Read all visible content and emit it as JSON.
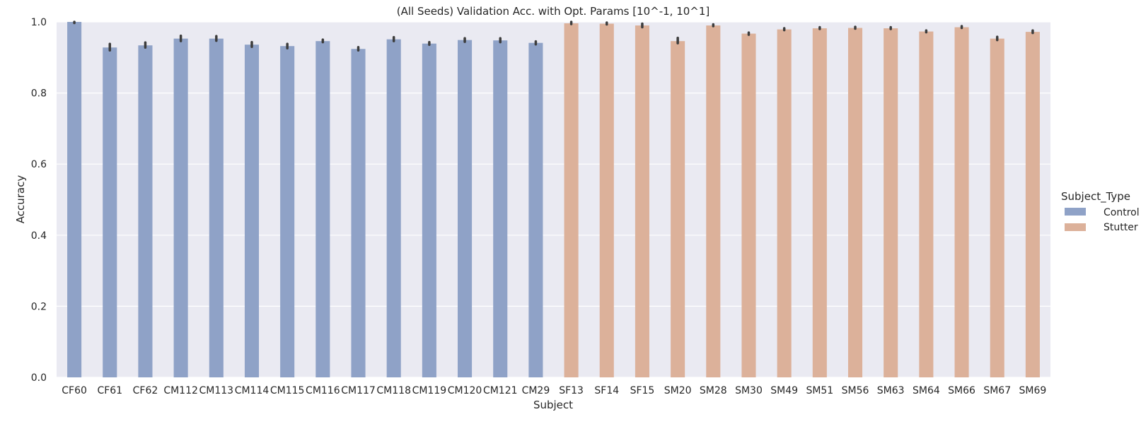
{
  "chart_data": {
    "type": "bar",
    "title": "(All Seeds) Validation Acc. with Opt. Params [10^-1, 10^1]",
    "xlabel": "Subject",
    "ylabel": "Accuracy",
    "ylim": [
      0.0,
      1.0
    ],
    "yticks": [
      "0.0",
      "0.2",
      "0.4",
      "0.6",
      "0.8",
      "1.0"
    ],
    "grid": true,
    "legend": {
      "title": "Subject_Type",
      "placement": "right"
    },
    "categories": [
      "CF60",
      "CF61",
      "CF62",
      "CM112",
      "CM113",
      "CM114",
      "CM115",
      "CM116",
      "CM117",
      "CM118",
      "CM119",
      "CM120",
      "CM121",
      "CM29",
      "SF13",
      "SF14",
      "SF15",
      "SM20",
      "SM28",
      "SM30",
      "SM49",
      "SM51",
      "SM56",
      "SM63",
      "SM64",
      "SM66",
      "SM67",
      "SM69"
    ],
    "series": [
      {
        "name": "Control",
        "color": "#8fa2c7",
        "values": [
          1.0,
          0.928,
          0.934,
          0.953,
          0.953,
          0.936,
          0.932,
          0.946,
          0.924,
          0.951,
          0.939,
          0.949,
          0.948,
          0.941,
          null,
          null,
          null,
          null,
          null,
          null,
          null,
          null,
          null,
          null,
          null,
          null,
          null,
          null
        ],
        "err_low": [
          0.997,
          0.92,
          0.928,
          0.946,
          0.947,
          0.93,
          0.926,
          0.943,
          0.92,
          0.946,
          0.936,
          0.944,
          0.943,
          0.937,
          null,
          null,
          null,
          null,
          null,
          null,
          null,
          null,
          null,
          null,
          null,
          null,
          null,
          null
        ],
        "err_high": [
          1.0,
          0.938,
          0.942,
          0.961,
          0.96,
          0.943,
          0.938,
          0.95,
          0.929,
          0.957,
          0.943,
          0.954,
          0.954,
          0.945,
          null,
          null,
          null,
          null,
          null,
          null,
          null,
          null,
          null,
          null,
          null,
          null,
          null,
          null
        ]
      },
      {
        "name": "Stutter",
        "color": "#dcb19a",
        "values": [
          null,
          null,
          null,
          null,
          null,
          null,
          null,
          null,
          null,
          null,
          null,
          null,
          null,
          null,
          0.996,
          0.995,
          0.99,
          0.946,
          0.99,
          0.967,
          0.979,
          0.982,
          0.983,
          0.982,
          0.973,
          0.985,
          0.953,
          0.972
        ],
        "err_low": [
          null,
          null,
          null,
          null,
          null,
          null,
          null,
          null,
          null,
          null,
          null,
          null,
          null,
          null,
          0.994,
          0.993,
          0.985,
          0.94,
          0.988,
          0.964,
          0.977,
          0.98,
          0.981,
          0.98,
          0.971,
          0.983,
          0.949,
          0.969
        ],
        "err_high": [
          null,
          null,
          null,
          null,
          null,
          null,
          null,
          null,
          null,
          null,
          null,
          null,
          null,
          null,
          1.0,
          0.998,
          0.995,
          0.955,
          0.993,
          0.97,
          0.982,
          0.985,
          0.986,
          0.985,
          0.976,
          0.988,
          0.958,
          0.976
        ]
      }
    ]
  }
}
